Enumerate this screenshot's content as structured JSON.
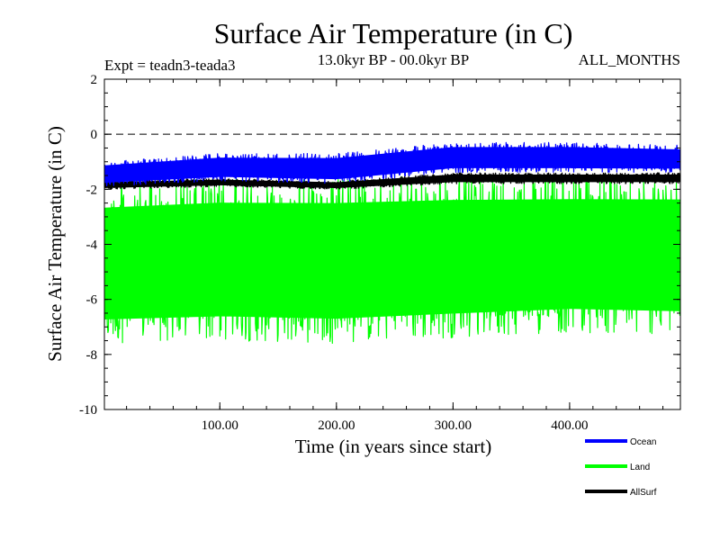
{
  "chart_data": {
    "type": "line",
    "title": "Surface Air Temperature (in C)",
    "subtitle": "13.0kyr BP - 00.0kyr BP",
    "left_label": "Expt = teadn3-teada3",
    "right_label": "ALL_MONTHS",
    "xlabel": "Time (in years since start)",
    "ylabel": "Surface Air Temperature (in C)",
    "xlim": [
      1,
      495
    ],
    "ylim": [
      -10,
      2
    ],
    "x_ticks": [
      100,
      200,
      300,
      400
    ],
    "x_tick_labels": [
      "100.00",
      "200.00",
      "300.00",
      "400.00"
    ],
    "y_ticks": [
      2,
      0,
      -2,
      -4,
      -6,
      -8,
      -10
    ],
    "y_tick_labels": [
      "2",
      "0",
      "-2",
      "-4",
      "-6",
      "-8",
      "-10"
    ],
    "reference_line": {
      "y": 0,
      "style": "dashed"
    },
    "legend_position": "bottom-right",
    "series": [
      {
        "name": "Land",
        "color": "#00ff00",
        "band": {
          "x": [
            0,
            100,
            200,
            300,
            400,
            495
          ],
          "upper": [
            -1.8,
            -1.6,
            -1.6,
            -1.5,
            -1.5,
            -1.5
          ],
          "lower": [
            -7.6,
            -7.5,
            -7.6,
            -7.4,
            -7.2,
            -7.3
          ]
        }
      },
      {
        "name": "AllSurf",
        "color": "#000000",
        "band": {
          "x": [
            0,
            100,
            200,
            300,
            400,
            495
          ],
          "upper": [
            -1.7,
            -1.6,
            -1.7,
            -1.4,
            -1.4,
            -1.4
          ],
          "lower": [
            -2.0,
            -1.9,
            -2.0,
            -1.8,
            -1.8,
            -1.8
          ]
        }
      },
      {
        "name": "Ocean",
        "color": "#0000ff",
        "band": {
          "x": [
            0,
            100,
            200,
            300,
            400,
            495
          ],
          "upper": [
            -1.0,
            -0.7,
            -0.7,
            -0.3,
            -0.3,
            -0.4
          ],
          "lower": [
            -1.9,
            -1.7,
            -1.8,
            -1.4,
            -1.4,
            -1.4
          ]
        }
      }
    ],
    "legend": [
      {
        "name": "Ocean",
        "color": "#0000ff"
      },
      {
        "name": "Land",
        "color": "#00ff00"
      },
      {
        "name": "AllSurf",
        "color": "#000000"
      }
    ]
  }
}
